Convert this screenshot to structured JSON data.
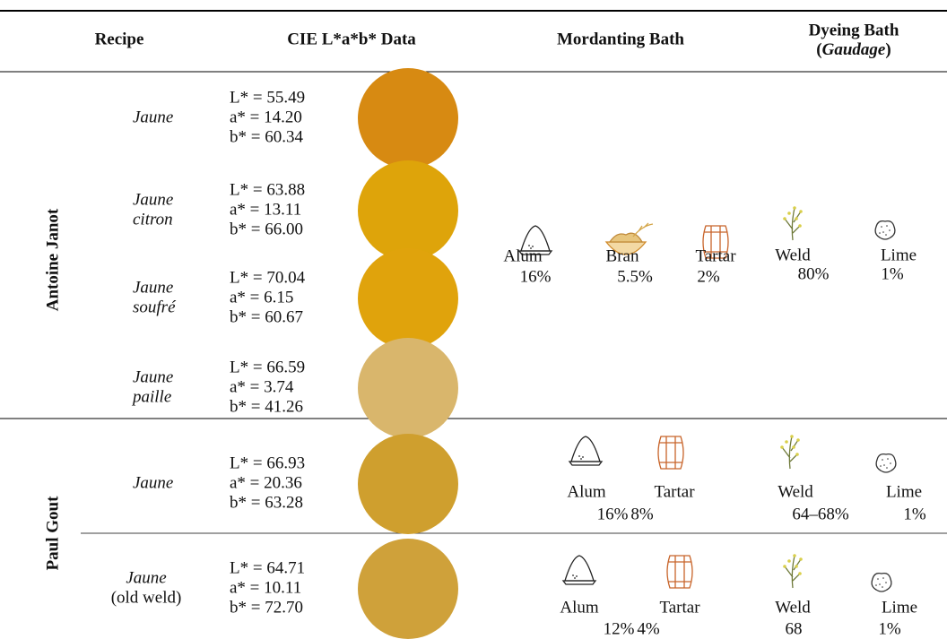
{
  "header": {
    "recipe": "Recipe",
    "cie": "CIE L*a*b* Data",
    "mordanting": "Mordanting Bath",
    "dyeing": "Dyeing Bath",
    "dyeing_sub": {
      "before": "(",
      "italic": "Gaudage",
      "after": ")"
    }
  },
  "groups": [
    {
      "name": "Antoine Janot",
      "recipes": [
        {
          "name": "Jaune",
          "lab": [
            "L* = 55.49",
            "a* = 14.20",
            "b* = 60.34"
          ],
          "swatch": "#d78a12"
        },
        {
          "name": "Jaune",
          "qualifier": "citron",
          "lab": [
            "L* = 63.88",
            "a* = 13.11",
            "b* = 66.00"
          ],
          "swatch": "#dea40a"
        },
        {
          "name": "Jaune",
          "qualifier": "soufré",
          "lab": [
            "L* = 70.04",
            "a* = 6.15",
            "b* = 60.67"
          ],
          "swatch": "#e0a30c"
        },
        {
          "name": "Jaune",
          "qualifier": "paille",
          "lab": [
            "L* = 66.59",
            "a* = 3.74",
            "b* = 41.26"
          ],
          "swatch": "#d9b66c"
        }
      ],
      "mordanting": [
        {
          "name": "Alum",
          "amount": "16%"
        },
        {
          "name": "Bran",
          "amount": "5.5%"
        },
        {
          "name": "Tartar",
          "amount": "2%"
        }
      ],
      "dyeing": [
        {
          "name": "Weld",
          "amount": "80%"
        },
        {
          "name": "Lime",
          "amount": "1%"
        }
      ]
    },
    {
      "name": "Paul Gout",
      "recipes": [
        {
          "name": "Jaune",
          "lab": [
            "L* = 66.93",
            "a* = 20.36",
            "b* = 63.28"
          ],
          "swatch": "#cf9f2e",
          "mordanting": [
            {
              "name": "Alum",
              "amount": "16%"
            },
            {
              "name": "Tartar",
              "amount": "8%"
            }
          ],
          "dyeing": [
            {
              "name": "Weld",
              "amount": "64–68%"
            },
            {
              "name": "Lime",
              "amount": "1%"
            }
          ]
        },
        {
          "name": "Jaune",
          "note": "(old weld)",
          "lab": [
            "L* = 64.71",
            "a* = 10.11",
            "b* = 72.70"
          ],
          "swatch": "#cfa13a",
          "mordanting": [
            {
              "name": "Alum",
              "amount": "12%"
            },
            {
              "name": "Tartar",
              "amount": "4%"
            }
          ],
          "dyeing": [
            {
              "name": "Weld",
              "amount": "68"
            },
            {
              "name": "Lime",
              "amount": "1%"
            }
          ]
        }
      ]
    }
  ]
}
